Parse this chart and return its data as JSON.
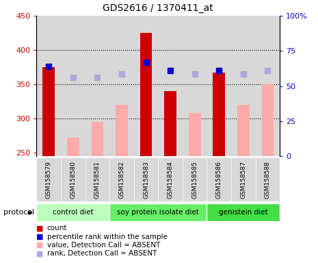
{
  "title": "GDS2616 / 1370411_at",
  "samples": [
    "GSM158579",
    "GSM158580",
    "GSM158581",
    "GSM158582",
    "GSM158583",
    "GSM158584",
    "GSM158585",
    "GSM158586",
    "GSM158587",
    "GSM158588"
  ],
  "red_bars": [
    375,
    null,
    null,
    null,
    425,
    340,
    null,
    367,
    null,
    null
  ],
  "pink_bars": [
    null,
    272,
    295,
    320,
    null,
    null,
    308,
    null,
    320,
    350
  ],
  "blue_squares": [
    376,
    null,
    null,
    null,
    382,
    370,
    null,
    370,
    null,
    null
  ],
  "lightblue_squares": [
    null,
    360,
    360,
    365,
    null,
    null,
    365,
    null,
    365,
    370
  ],
  "ylim": [
    245,
    450
  ],
  "y2lim": [
    0,
    100
  ],
  "yticks": [
    250,
    300,
    350,
    400,
    450
  ],
  "y2ticks_vals": [
    0,
    25,
    50,
    75,
    100
  ],
  "y2ticks_labels": [
    "0",
    "25",
    "50",
    "75",
    "100%"
  ],
  "gridlines": [
    300,
    350,
    400
  ],
  "bar_color_red": "#cc0000",
  "bar_color_pink": "#ffaaaa",
  "sq_color_blue": "#0000cc",
  "sq_color_lightblue": "#aaaadd",
  "bg_color": "#d8d8d8",
  "ylabel_color": "#cc0000",
  "y2label_color": "#0000cc",
  "bar_width": 0.5,
  "sq_size": 30,
  "group_colors": [
    "#bbffbb",
    "#66ee66",
    "#44dd44"
  ],
  "group_labels": [
    "control diet",
    "soy protein isolate diet",
    "genistein diet"
  ],
  "group_ranges": [
    [
      0,
      3
    ],
    [
      3,
      7
    ],
    [
      7,
      10
    ]
  ]
}
